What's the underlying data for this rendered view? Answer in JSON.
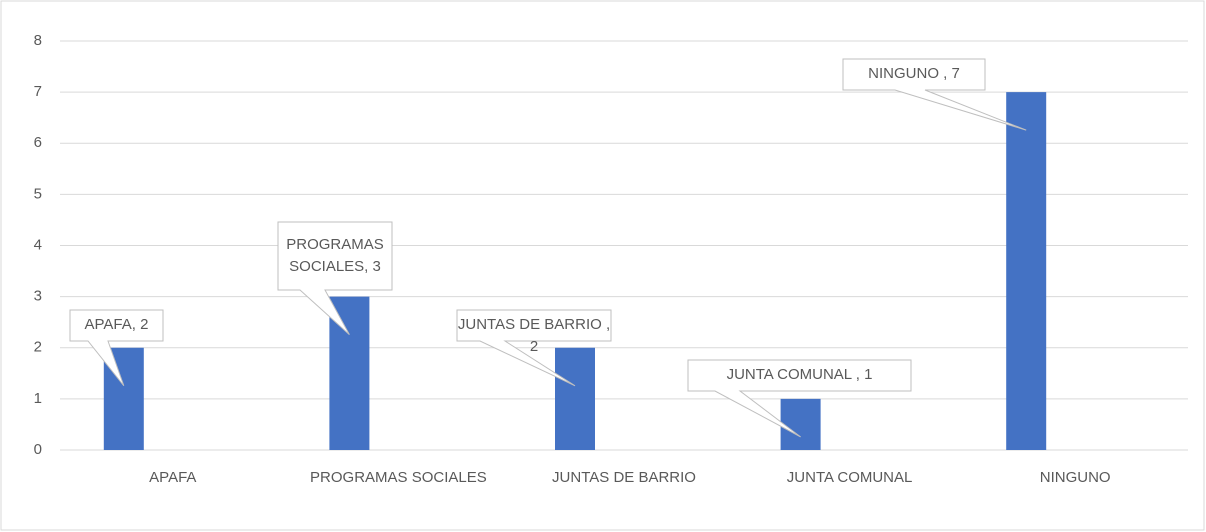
{
  "chart_data": {
    "type": "bar",
    "categories": [
      "APAFA",
      "PROGRAMAS SOCIALES",
      "JUNTAS DE BARRIO",
      "JUNTA COMUNAL",
      "NINGUNO"
    ],
    "values": [
      2,
      3,
      2,
      1,
      7
    ],
    "value_labels": [
      "APAFA, 2",
      "PROGRAMAS SOCIALES, 3",
      "JUNTAS DE BARRIO , 2",
      "JUNTA COMUNAL , 1",
      "NINGUNO , 7"
    ],
    "color": "#4472c4",
    "ylim": [
      0,
      8
    ],
    "yticks": [
      0,
      1,
      2,
      3,
      4,
      5,
      6,
      7,
      8
    ],
    "grid": true
  }
}
